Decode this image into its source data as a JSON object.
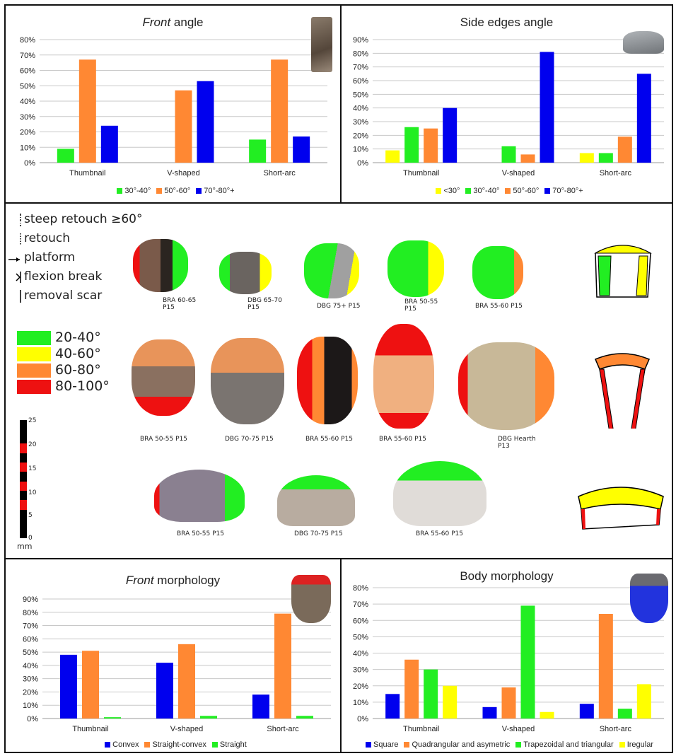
{
  "palette": {
    "green": "#22ee22",
    "orange": "#ff8833",
    "blue": "#0000ee",
    "yellow": "#ffff00",
    "red": "#ee1111"
  },
  "chart_data": [
    {
      "id": "front-angle",
      "type": "bar",
      "title": "angle",
      "title_italic": "Front",
      "categories": [
        "Thumbnail",
        "V-shaped",
        "Short-arc"
      ],
      "ylim": [
        0,
        80
      ],
      "yticks": [
        0,
        10,
        20,
        30,
        40,
        50,
        60,
        70,
        80
      ],
      "ytick_labels": [
        "0%",
        "10%",
        "20%",
        "30%",
        "40%",
        "50%",
        "60%",
        "70%",
        "80%"
      ],
      "series": [
        {
          "name": "30°-40°",
          "color": "#22ee22",
          "values": [
            9,
            0,
            15
          ]
        },
        {
          "name": "50°-60°",
          "color": "#ff8833",
          "values": [
            67,
            47,
            67
          ]
        },
        {
          "name": "70°-80°+",
          "color": "#0000ee",
          "values": [
            24,
            53,
            17
          ]
        }
      ],
      "legend_position": "bottom"
    },
    {
      "id": "side-edges-angle",
      "type": "bar",
      "title": "Side edges angle",
      "title_italic": "",
      "categories": [
        "Thumbnail",
        "V-shaped",
        "Short-arc"
      ],
      "ylim": [
        0,
        90
      ],
      "yticks": [
        0,
        10,
        20,
        30,
        40,
        50,
        60,
        70,
        80,
        90
      ],
      "ytick_labels": [
        "0%",
        "10%",
        "20%",
        "30%",
        "40%",
        "50%",
        "60%",
        "70%",
        "80%",
        "90%"
      ],
      "series": [
        {
          "name": "<30°",
          "color": "#ffff00",
          "values": [
            9,
            0,
            7
          ]
        },
        {
          "name": "30°-40°",
          "color": "#22ee22",
          "values": [
            26,
            12,
            7
          ]
        },
        {
          "name": "50°-60°",
          "color": "#ff8833",
          "values": [
            25,
            6,
            19
          ]
        },
        {
          "name": "70°-80°+",
          "color": "#0000ee",
          "values": [
            40,
            81,
            65
          ]
        }
      ],
      "legend_position": "bottom"
    },
    {
      "id": "front-morphology",
      "type": "bar",
      "title": "morphology",
      "title_italic": "Front",
      "categories": [
        "Thumbnail",
        "V-shaped",
        "Short-arc"
      ],
      "ylim": [
        0,
        90
      ],
      "yticks": [
        0,
        10,
        20,
        30,
        40,
        50,
        60,
        70,
        80,
        90
      ],
      "ytick_labels": [
        "0%",
        "10%",
        "20%",
        "30%",
        "40%",
        "50%",
        "60%",
        "70%",
        "80%",
        "90%"
      ],
      "series": [
        {
          "name": "Convex",
          "color": "#0000ee",
          "values": [
            48,
            42,
            18
          ]
        },
        {
          "name": "Straight-convex",
          "color": "#ff8833",
          "values": [
            51,
            56,
            79
          ]
        },
        {
          "name": "Straight",
          "color": "#22ee22",
          "values": [
            1,
            2,
            2
          ]
        }
      ],
      "legend_position": "bottom"
    },
    {
      "id": "body-morphology",
      "type": "bar",
      "title": "Body morphology",
      "title_italic": "",
      "categories": [
        "Thumbnail",
        "V-shaped",
        "Short-arc"
      ],
      "ylim": [
        0,
        80
      ],
      "yticks": [
        0,
        10,
        20,
        30,
        40,
        50,
        60,
        70,
        80
      ],
      "ytick_labels": [
        "0%",
        "10%",
        "20%",
        "30%",
        "40%",
        "50%",
        "60%",
        "70%",
        "80%"
      ],
      "series": [
        {
          "name": "Square",
          "color": "#0000ee",
          "values": [
            15,
            7,
            9
          ]
        },
        {
          "name": "Quadrangular and asymetric",
          "color": "#ff8833",
          "values": [
            36,
            19,
            64
          ]
        },
        {
          "name": "Trapezoidal and triangular",
          "color": "#22ee22",
          "values": [
            30,
            69,
            6
          ]
        },
        {
          "name": "Iregular",
          "color": "#ffff00",
          "values": [
            20,
            4,
            21
          ]
        }
      ],
      "legend_position": "bottom"
    }
  ],
  "symbol_legend": [
    "steep retouch ≥60°",
    "retouch",
    "platform",
    "flexion break",
    "removal scar"
  ],
  "color_legend": [
    {
      "label": "20-40°",
      "color": "#22ee22"
    },
    {
      "label": "40-60°",
      "color": "#ffff00"
    },
    {
      "label": "60-80°",
      "color": "#ff8833"
    },
    {
      "label": "80-100°",
      "color": "#ee1111"
    }
  ],
  "scale_bar": {
    "ticks": [
      "0",
      "5",
      "10",
      "15",
      "20",
      "25"
    ],
    "unit": "mm"
  },
  "specimens": {
    "row1": [
      "BRA 60-65 P15",
      "DBG 65-70 P15",
      "DBG 75+ P15",
      "BRA 50-55 P15",
      "BRA 55-60 P15"
    ],
    "row2": [
      "BRA 50-55 P15",
      "DBG 70-75 P15",
      "BRA 55-60 P15",
      "BRA 55-60 P15",
      "DBG Hearth P13"
    ],
    "row3": [
      "BRA 50-55 P15",
      "DBG 70-75 P15",
      "BRA 55-60 P15"
    ]
  }
}
